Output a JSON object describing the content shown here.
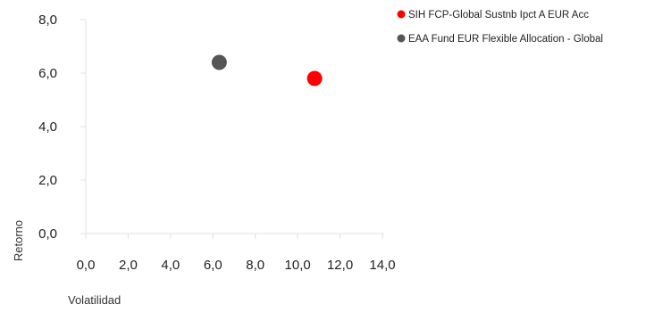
{
  "chart_data": {
    "type": "scatter",
    "title": "",
    "xlabel": "Volatilidad",
    "ylabel": "Retorno",
    "xlim": [
      0,
      14
    ],
    "ylim": [
      0,
      8
    ],
    "x_ticks": [
      "0,0",
      "2,0",
      "4,0",
      "6,0",
      "8,0",
      "10,0",
      "12,0",
      "14,0"
    ],
    "y_ticks": [
      "0,0",
      "2,0",
      "4,0",
      "6,0",
      "8,0"
    ],
    "grid": false,
    "legend_position": "top-right",
    "series": [
      {
        "name": "SIH FCP-Global Sustnb Ipct A EUR Acc",
        "color": "#ff0000",
        "points": [
          {
            "x": 10.8,
            "y": 5.8
          }
        ]
      },
      {
        "name": "EAA Fund EUR Flexible Allocation - Global",
        "color": "#555555",
        "points": [
          {
            "x": 6.3,
            "y": 6.4
          }
        ]
      }
    ]
  }
}
